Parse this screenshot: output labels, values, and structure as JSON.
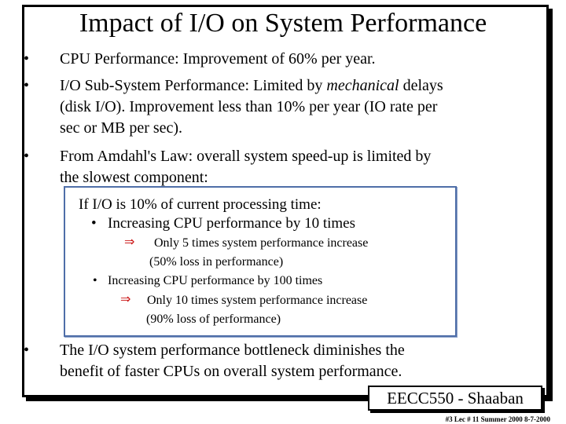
{
  "slide": {
    "title": "Impact of I/O on System Performance",
    "bullets": [
      {
        "symbol": "•",
        "lines": [
          "CPU Performance:  Improvement of 60% per year."
        ]
      },
      {
        "symbol": "•",
        "lines_parts": {
          "line1_pre": "I/O Sub-System Performance:  Limited by ",
          "line1_em": "mechanical",
          "line1_post": " delays",
          "line2": "(disk I/O). Improvement less than 10% per year (IO rate per",
          "line3": "sec or MB per sec)."
        }
      },
      {
        "symbol": "•",
        "lines": [
          "From Amdahl's Law: overall system speed-up is limited by",
          "the slowest component:"
        ]
      },
      {
        "symbol": "•",
        "lines": [
          "The I/O system performance bottleneck diminishes the",
          "benefit of faster CPUs on overall system performance."
        ]
      }
    ],
    "box": {
      "heading": "If I/O is 10% of current processing time:",
      "item1": "Increasing CPU performance by 10 times",
      "item1_arrow": "⇒",
      "item1_result": "Only 5 times system performance increase",
      "item1_note": "(50% loss in performance)",
      "item2": "Increasing CPU performance by 100 times",
      "item2_arrow": "⇒",
      "item2_result": "Only 10  times  system performance increase",
      "item2_note": "(90% loss of performance)",
      "sub_bullet": "•"
    }
  },
  "footer": {
    "label": "EECC550 - Shaaban",
    "small": "#3   Lec # 11   Summer 2000   8-7-2000"
  },
  "colors": {
    "arrow": "#cc1a1a",
    "box_border": "#4f6ea8"
  }
}
